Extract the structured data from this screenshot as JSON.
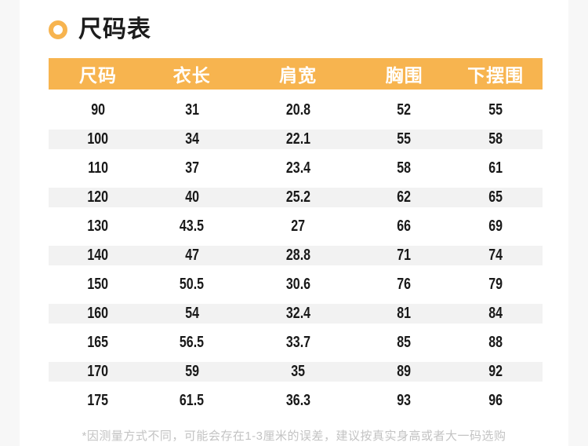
{
  "colors": {
    "accent": "#F7B44F",
    "stripe": "#F2F2F2",
    "page_bg": "#F7F7F7",
    "note_gray": "#C3C3C3"
  },
  "section": {
    "title": "尺码表",
    "bullet_icon": "ring-icon"
  },
  "table": {
    "headers": [
      "尺码",
      "衣长",
      "肩宽",
      "胸围",
      "下摆围"
    ],
    "rows": [
      [
        "90",
        "31",
        "20.8",
        "52",
        "55"
      ],
      [
        "100",
        "34",
        "22.1",
        "55",
        "58"
      ],
      [
        "110",
        "37",
        "23.4",
        "58",
        "61"
      ],
      [
        "120",
        "40",
        "25.2",
        "62",
        "65"
      ],
      [
        "130",
        "43.5",
        "27",
        "66",
        "69"
      ],
      [
        "140",
        "47",
        "28.8",
        "71",
        "74"
      ],
      [
        "150",
        "50.5",
        "30.6",
        "76",
        "79"
      ],
      [
        "160",
        "54",
        "32.4",
        "81",
        "84"
      ],
      [
        "165",
        "56.5",
        "33.7",
        "85",
        "88"
      ],
      [
        "170",
        "59",
        "35",
        "89",
        "92"
      ],
      [
        "175",
        "61.5",
        "36.3",
        "93",
        "96"
      ]
    ]
  },
  "footnote": {
    "text": "*因测量方式不同，可能会存在1-3厘米的误差，建议按真实身高或者大一码选购"
  }
}
